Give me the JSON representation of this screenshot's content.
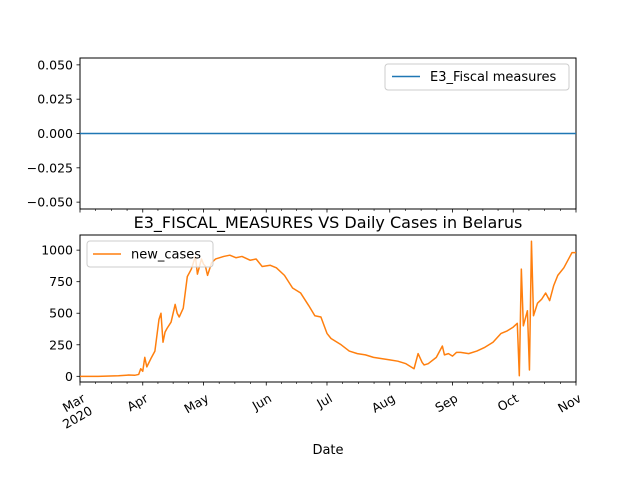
{
  "figure": {
    "title": "E3_FISCAL_MEASURES VS Daily Cases in Belarus",
    "xlabel": "Date"
  },
  "chart_data": [
    {
      "type": "line",
      "series": [
        {
          "name": "E3_Fiscal measures",
          "color": "#1f77b4",
          "x": [
            "2020-03-01",
            "2020-11-01"
          ],
          "values": [
            0,
            0
          ]
        }
      ],
      "ylim": [
        -0.055,
        0.055
      ],
      "yticks": [
        -0.05,
        -0.025,
        0.0,
        0.025,
        0.05
      ],
      "ytick_labels": [
        "−0.050",
        "−0.025",
        "0.000",
        "0.025",
        "0.050"
      ],
      "legend": "top-right",
      "grid": false
    },
    {
      "type": "line",
      "series": [
        {
          "name": "new_cases",
          "color": "#ff7f0e",
          "x": [
            "2020-03-01",
            "2020-03-10",
            "2020-03-20",
            "2020-03-25",
            "2020-03-28",
            "2020-03-30",
            "2020-03-31",
            "2020-04-01",
            "2020-04-02",
            "2020-04-03",
            "2020-04-05",
            "2020-04-07",
            "2020-04-09",
            "2020-04-10",
            "2020-04-11",
            "2020-04-12",
            "2020-04-13",
            "2020-04-15",
            "2020-04-17",
            "2020-04-18",
            "2020-04-19",
            "2020-04-21",
            "2020-04-23",
            "2020-04-25",
            "2020-04-27",
            "2020-04-28",
            "2020-04-30",
            "2020-05-01",
            "2020-05-02",
            "2020-05-03",
            "2020-05-05",
            "2020-05-07",
            "2020-05-09",
            "2020-05-11",
            "2020-05-14",
            "2020-05-17",
            "2020-05-20",
            "2020-05-24",
            "2020-05-27",
            "2020-05-30",
            "2020-06-03",
            "2020-06-06",
            "2020-06-10",
            "2020-06-14",
            "2020-06-18",
            "2020-06-22",
            "2020-06-25",
            "2020-06-28",
            "2020-07-01",
            "2020-07-03",
            "2020-07-05",
            "2020-07-08",
            "2020-07-12",
            "2020-07-16",
            "2020-07-20",
            "2020-07-24",
            "2020-07-28",
            "2020-08-01",
            "2020-08-05",
            "2020-08-09",
            "2020-08-13",
            "2020-08-15",
            "2020-08-17",
            "2020-08-18",
            "2020-08-20",
            "2020-08-24",
            "2020-08-27",
            "2020-08-28",
            "2020-08-30",
            "2020-09-01",
            "2020-09-03",
            "2020-09-05",
            "2020-09-09",
            "2020-09-13",
            "2020-09-17",
            "2020-09-21",
            "2020-09-25",
            "2020-09-28",
            "2020-10-01",
            "2020-10-03",
            "2020-10-04",
            "2020-10-05",
            "2020-10-06",
            "2020-10-08",
            "2020-10-09",
            "2020-10-10",
            "2020-10-11",
            "2020-10-13",
            "2020-10-15",
            "2020-10-17",
            "2020-10-19",
            "2020-10-21",
            "2020-10-23",
            "2020-10-26",
            "2020-10-29",
            "2020-10-30",
            "2020-11-01"
          ],
          "values": [
            0,
            0,
            5,
            10,
            8,
            15,
            60,
            40,
            150,
            75,
            140,
            200,
            450,
            500,
            270,
            350,
            380,
            430,
            570,
            500,
            470,
            540,
            790,
            850,
            950,
            810,
            930,
            890,
            870,
            800,
            900,
            930,
            940,
            950,
            960,
            940,
            950,
            920,
            930,
            870,
            880,
            860,
            800,
            700,
            660,
            560,
            480,
            470,
            340,
            300,
            280,
            250,
            200,
            180,
            170,
            150,
            140,
            130,
            120,
            100,
            60,
            180,
            110,
            90,
            100,
            150,
            240,
            170,
            180,
            160,
            190,
            190,
            180,
            200,
            230,
            270,
            340,
            360,
            390,
            420,
            5,
            850,
            400,
            520,
            50,
            1070,
            480,
            580,
            610,
            660,
            600,
            720,
            800,
            860,
            950,
            980,
            980
          ]
        }
      ],
      "ylim": [
        -45,
        1120
      ],
      "yticks": [
        0,
        250,
        500,
        750,
        1000
      ],
      "ytick_labels": [
        "0",
        "250",
        "500",
        "750",
        "1000"
      ],
      "xlim": [
        "2020-03-01",
        "2020-11-01"
      ],
      "xticks": [
        "2020-03-01",
        "2020-04-01",
        "2020-05-01",
        "2020-06-01",
        "2020-07-01",
        "2020-08-01",
        "2020-09-01",
        "2020-10-01",
        "2020-11-01"
      ],
      "xtick_labels": [
        "Mar\n2020",
        "Apr",
        "May",
        "Jun",
        "Jul",
        "Aug",
        "Sep",
        "Oct",
        "Nov"
      ],
      "legend": "top-left",
      "grid": false
    }
  ]
}
